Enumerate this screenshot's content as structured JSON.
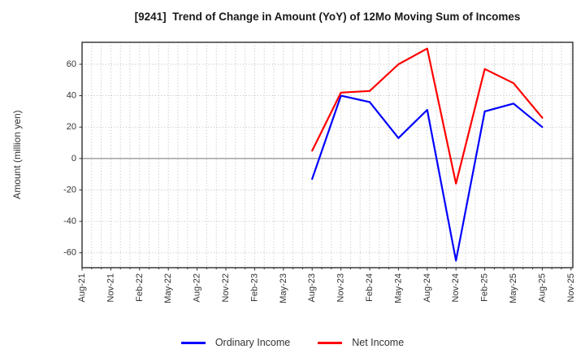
{
  "title": "[9241]  Trend of Change in Amount (YoY) of 12Mo Moving Sum of Incomes",
  "y_axis_label": "Amount (million yen)",
  "legend": [
    {
      "label": "Ordinary Income",
      "color": "#0000ff"
    },
    {
      "label": "Net Income",
      "color": "#ff0000"
    }
  ],
  "colors": {
    "ordinary_income": "#0000ff",
    "net_income": "#ff0000",
    "grid": "#b5b5b5",
    "zero_line": "#858585",
    "frame": "#2e2e2e",
    "text": "#333333"
  },
  "chart_data": {
    "type": "line",
    "title": "[9241]  Trend of Change in Amount (YoY) of 12Mo Moving Sum of Incomes",
    "xlabel": "",
    "ylabel": "Amount (million yen)",
    "x_tick_labels": [
      "Aug-21",
      "Nov-21",
      "Feb-22",
      "May-22",
      "Aug-22",
      "Nov-22",
      "Feb-23",
      "May-23",
      "Aug-23",
      "Nov-23",
      "Feb-24",
      "May-24",
      "Aug-24",
      "Nov-24",
      "Feb-25",
      "May-25",
      "Aug-25",
      "Nov-25"
    ],
    "y_ticks": [
      60,
      40,
      20,
      0,
      -20,
      -40,
      -60
    ],
    "ylim": [
      -69.5,
      74
    ],
    "grid": true,
    "minor_x_grid_monthly": true,
    "legend_position": "bottom-center",
    "categories": [
      "Aug-23",
      "Nov-23",
      "Feb-24",
      "May-24",
      "Aug-24",
      "Nov-24",
      "Feb-25",
      "May-25",
      "Aug-25"
    ],
    "series": [
      {
        "name": "Ordinary Income",
        "color": "#0000ff",
        "values": [
          -13,
          40,
          36,
          13,
          31,
          -65,
          30,
          35,
          20
        ]
      },
      {
        "name": "Net Income",
        "color": "#ff0000",
        "values": [
          5,
          42,
          43,
          60,
          70,
          -16,
          57,
          48,
          26
        ]
      }
    ]
  }
}
